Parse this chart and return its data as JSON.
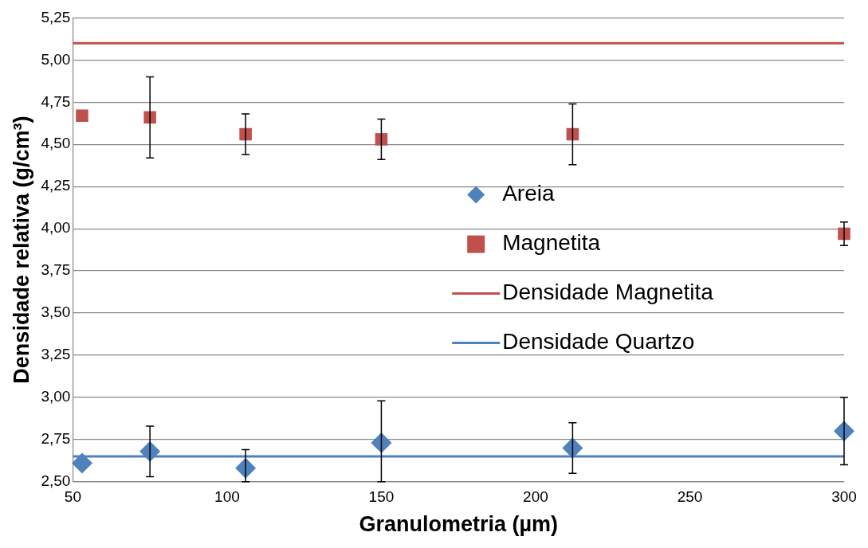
{
  "chart_data": {
    "type": "scatter",
    "xlabel": "Granulometria (µm)",
    "ylabel": "Densidade relativa (g/cm³)",
    "xlim": [
      50,
      300
    ],
    "xticks": [
      50,
      100,
      150,
      200,
      250,
      300
    ],
    "ylim": [
      2.5,
      5.25
    ],
    "yticks": [
      {
        "value": 2.5,
        "label": "2,50"
      },
      {
        "value": 2.75,
        "label": "2,75"
      },
      {
        "value": 3,
        "label": "3,00"
      },
      {
        "value": 3.25,
        "label": "3,25"
      },
      {
        "value": 3.5,
        "label": "3,50"
      },
      {
        "value": 3.75,
        "label": "3,75"
      },
      {
        "value": 4,
        "label": "4,00"
      },
      {
        "value": 4.25,
        "label": "4,25"
      },
      {
        "value": 4.5,
        "label": "4,50"
      },
      {
        "value": 4.75,
        "label": "4,75"
      },
      {
        "value": 5,
        "label": "5,00"
      },
      {
        "value": 5.25,
        "label": "5,25"
      }
    ],
    "grid": "y",
    "legend": "right",
    "series": [
      {
        "name": "Areia",
        "marker": "diamond",
        "color": "#4f81bd",
        "x": [
          53,
          75,
          106,
          150,
          212,
          300
        ],
        "values": [
          2.61,
          2.68,
          2.58,
          2.73,
          2.7,
          2.8
        ],
        "errors": [
          null,
          [
            2.53,
            2.83
          ],
          [
            2.5,
            2.69
          ],
          [
            2.5,
            2.98
          ],
          [
            2.55,
            2.85
          ],
          [
            2.6,
            3.0
          ]
        ]
      },
      {
        "name": "Magnetita",
        "marker": "square",
        "color": "#c0504d",
        "x": [
          53,
          75,
          106,
          150,
          212,
          300
        ],
        "values": [
          4.67,
          4.66,
          4.56,
          4.53,
          4.56,
          3.97
        ],
        "errors": [
          null,
          [
            4.42,
            4.9
          ],
          [
            4.44,
            4.68
          ],
          [
            4.41,
            4.65
          ],
          [
            4.38,
            4.74
          ],
          [
            3.9,
            4.04
          ]
        ]
      },
      {
        "name": "Densidade Magnetita",
        "type": "line",
        "marker": "none",
        "color": "#c0504d",
        "x": [
          50,
          300
        ],
        "values": [
          5.1,
          5.1
        ]
      },
      {
        "name": "Densidade Quartzo",
        "type": "line",
        "marker": "none",
        "color": "#4f81bd",
        "x": [
          50,
          300
        ],
        "values": [
          2.65,
          2.65
        ]
      }
    ]
  }
}
